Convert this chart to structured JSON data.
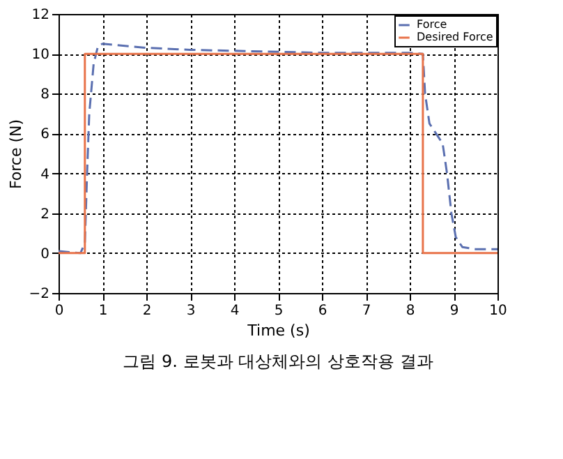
{
  "chart_data": {
    "type": "line",
    "xlabel": "Time (s)",
    "ylabel": "Force (N)",
    "xlim": [
      0,
      10
    ],
    "xticks": [
      0,
      1,
      2,
      3,
      4,
      5,
      6,
      7,
      8,
      9,
      10
    ],
    "ylim": [
      -2,
      12
    ],
    "yticks": [
      -2,
      0,
      2,
      4,
      6,
      8,
      10,
      12
    ],
    "grid": true,
    "legend": "top right",
    "annotations": [
      "그림 9. 로봇과 대상체와의 상호작용 결과"
    ],
    "series": [
      {
        "name": "Force",
        "color": "#5a6fb0",
        "line_style": "dashed",
        "x": [
          0,
          0.5,
          0.6,
          0.65,
          0.7,
          0.8,
          0.9,
          1.0,
          2,
          3,
          4,
          5,
          6,
          7,
          8,
          8.3,
          8.35,
          8.45,
          8.6,
          8.75,
          8.85,
          8.95,
          9.05,
          9.2,
          9.5,
          10
        ],
        "values": [
          0.1,
          0,
          0.5,
          4,
          7,
          9.5,
          10.4,
          10.5,
          10.3,
          10.2,
          10.15,
          10.1,
          10.05,
          10.05,
          10.05,
          10,
          8,
          6.5,
          6,
          5.5,
          4,
          2,
          0.8,
          0.3,
          0.2,
          0.2
        ]
      },
      {
        "name": "Desired Force",
        "type": "step",
        "color": "#e8734a",
        "line_style": "solid",
        "x": [
          0,
          0.6,
          8.3,
          10
        ],
        "values": [
          0,
          10,
          0,
          0
        ]
      }
    ]
  }
}
